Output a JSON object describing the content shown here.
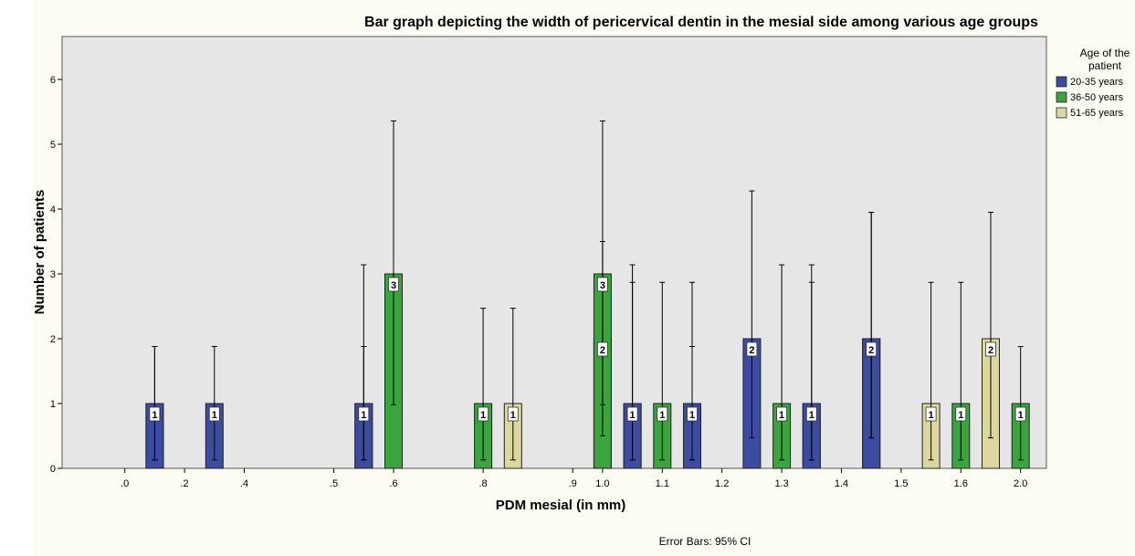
{
  "colors": {
    "plot_bg": "#e6e6e6",
    "outer_bg": "#fefdf4",
    "20-35 years": "#3d4ca3",
    "36-50 years": "#3aa43e",
    "51-65 years": "#dcd6a0"
  },
  "chart_data": {
    "type": "bar",
    "title": "Bar graph depicting the width of pericervical dentin in the mesial side among various age groups",
    "xlabel": "PDM mesial (in mm)",
    "ylabel": "Number of patients",
    "ylim": [
      0,
      6.5
    ],
    "yticks": [
      0,
      1,
      2,
      3,
      4,
      5,
      6
    ],
    "legend_title": "Age of the patient",
    "legend_position": "right",
    "footnote": "Error Bars: 95% CI",
    "grid": false,
    "categories": [
      ".0",
      ".2",
      ".4",
      ".5",
      ".6",
      ".8",
      ".9",
      "1.0",
      "1.1",
      "1.2",
      "1.3",
      "1.4",
      "1.5",
      "1.6",
      "2.0"
    ],
    "bars": [
      {
        "category": ".0",
        "series": "51-65 years",
        "value": 1,
        "ci": [
          0.13,
          1.88
        ]
      },
      {
        "category": ".2",
        "series": "20-35 years",
        "value": 1,
        "ci": [
          0.13,
          1.88
        ]
      },
      {
        "category": ".4",
        "series": "20-35 years",
        "value": 1,
        "ci": [
          0.13,
          1.88
        ]
      },
      {
        "category": ".5",
        "series": "51-65 years",
        "value": 1,
        "ci": [
          0.13,
          1.88
        ]
      },
      {
        "category": ".6",
        "series": "20-35 years",
        "value": 1,
        "ci": [
          0.13,
          3.14
        ]
      },
      {
        "category": ".6",
        "series": "36-50 years",
        "value": 3,
        "ci": [
          0.98,
          5.36
        ]
      },
      {
        "category": ".8",
        "series": "36-50 years",
        "value": 1,
        "ci": [
          0.13,
          2.47
        ]
      },
      {
        "category": ".8",
        "series": "51-65 years",
        "value": 1,
        "ci": [
          0.13,
          2.47
        ]
      },
      {
        "category": ".9",
        "series": "51-65 years",
        "value": 2,
        "ci": [
          0.5,
          3.5
        ]
      },
      {
        "category": "1.0",
        "series": "36-50 years",
        "value": 3,
        "ci": [
          0.98,
          5.36
        ]
      },
      {
        "category": "1.0",
        "series": "51-65 years",
        "value": 1,
        "ci": [
          0.13,
          3.14
        ]
      },
      {
        "category": "1.1",
        "series": "20-35 years",
        "value": 1,
        "ci": [
          0.13,
          2.87
        ]
      },
      {
        "category": "1.1",
        "series": "36-50 years",
        "value": 1,
        "ci": [
          0.13,
          2.87
        ]
      },
      {
        "category": "1.1",
        "series": "51-65 years",
        "value": 1,
        "ci": [
          0.13,
          2.87
        ]
      },
      {
        "category": "1.2",
        "series": "20-35 years",
        "value": 1,
        "ci": [
          0.13,
          1.88
        ]
      },
      {
        "category": "1.3",
        "series": "20-35 years",
        "value": 2,
        "ci": [
          0.47,
          4.28
        ]
      },
      {
        "category": "1.3",
        "series": "36-50 years",
        "value": 1,
        "ci": [
          0.13,
          3.14
        ]
      },
      {
        "category": "1.3",
        "series": "51-65 years",
        "value": 1,
        "ci": [
          0.13,
          3.14
        ]
      },
      {
        "category": "1.4",
        "series": "20-35 years",
        "value": 1,
        "ci": [
          0.13,
          2.87
        ]
      },
      {
        "category": "1.4",
        "series": "51-65 years",
        "value": 2,
        "ci": [
          0.47,
          3.95
        ]
      },
      {
        "category": "1.5",
        "series": "20-35 years",
        "value": 2,
        "ci": [
          0.47,
          3.95
        ]
      },
      {
        "category": "1.5",
        "series": "51-65 years",
        "value": 1,
        "ci": [
          0.13,
          2.87
        ]
      },
      {
        "category": "1.6",
        "series": "36-50 years",
        "value": 1,
        "ci": [
          0.13,
          2.87
        ]
      },
      {
        "category": "1.6",
        "series": "51-65 years",
        "value": 2,
        "ci": [
          0.47,
          3.95
        ]
      },
      {
        "category": "2.0",
        "series": "36-50 years",
        "value": 1,
        "ci": [
          0.13,
          1.88
        ]
      }
    ],
    "series": [
      {
        "name": "20-35 years"
      },
      {
        "name": "36-50 years"
      },
      {
        "name": "51-65 years"
      }
    ]
  }
}
